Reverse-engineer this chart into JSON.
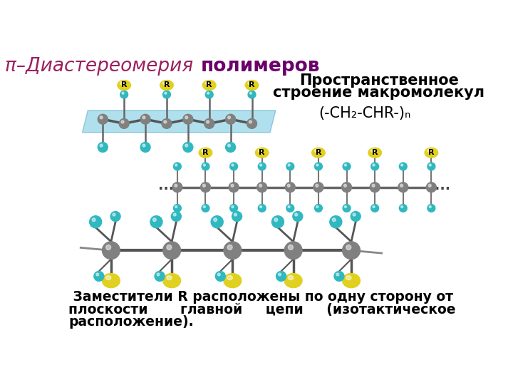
{
  "title_italic": "π–Диастереомерия ",
  "title_bold": "полимеров",
  "title_color_italic": "#9B2060",
  "title_color_bold": "#6B006B",
  "right_title_line1": "Пространственное",
  "right_title_line2": "строение макромолекул",
  "formula": "(-CH₂-CHR-)ₙ",
  "bottom_text_line1": " Заместители R расположены по одну сторону от",
  "bottom_text_line2": "плоскости       главной     цепи     (изотактическое",
  "bottom_text_line3": "расположение).",
  "bg_color": "#FFFFFF",
  "teal_color": "#30B8C0",
  "gray_color": "#808080",
  "yellow_color": "#E0D020",
  "R_ball_color": "#E0D020",
  "R_text_color": "#000000",
  "plane_color": "#70C8E0",
  "plane_alpha": 0.55
}
